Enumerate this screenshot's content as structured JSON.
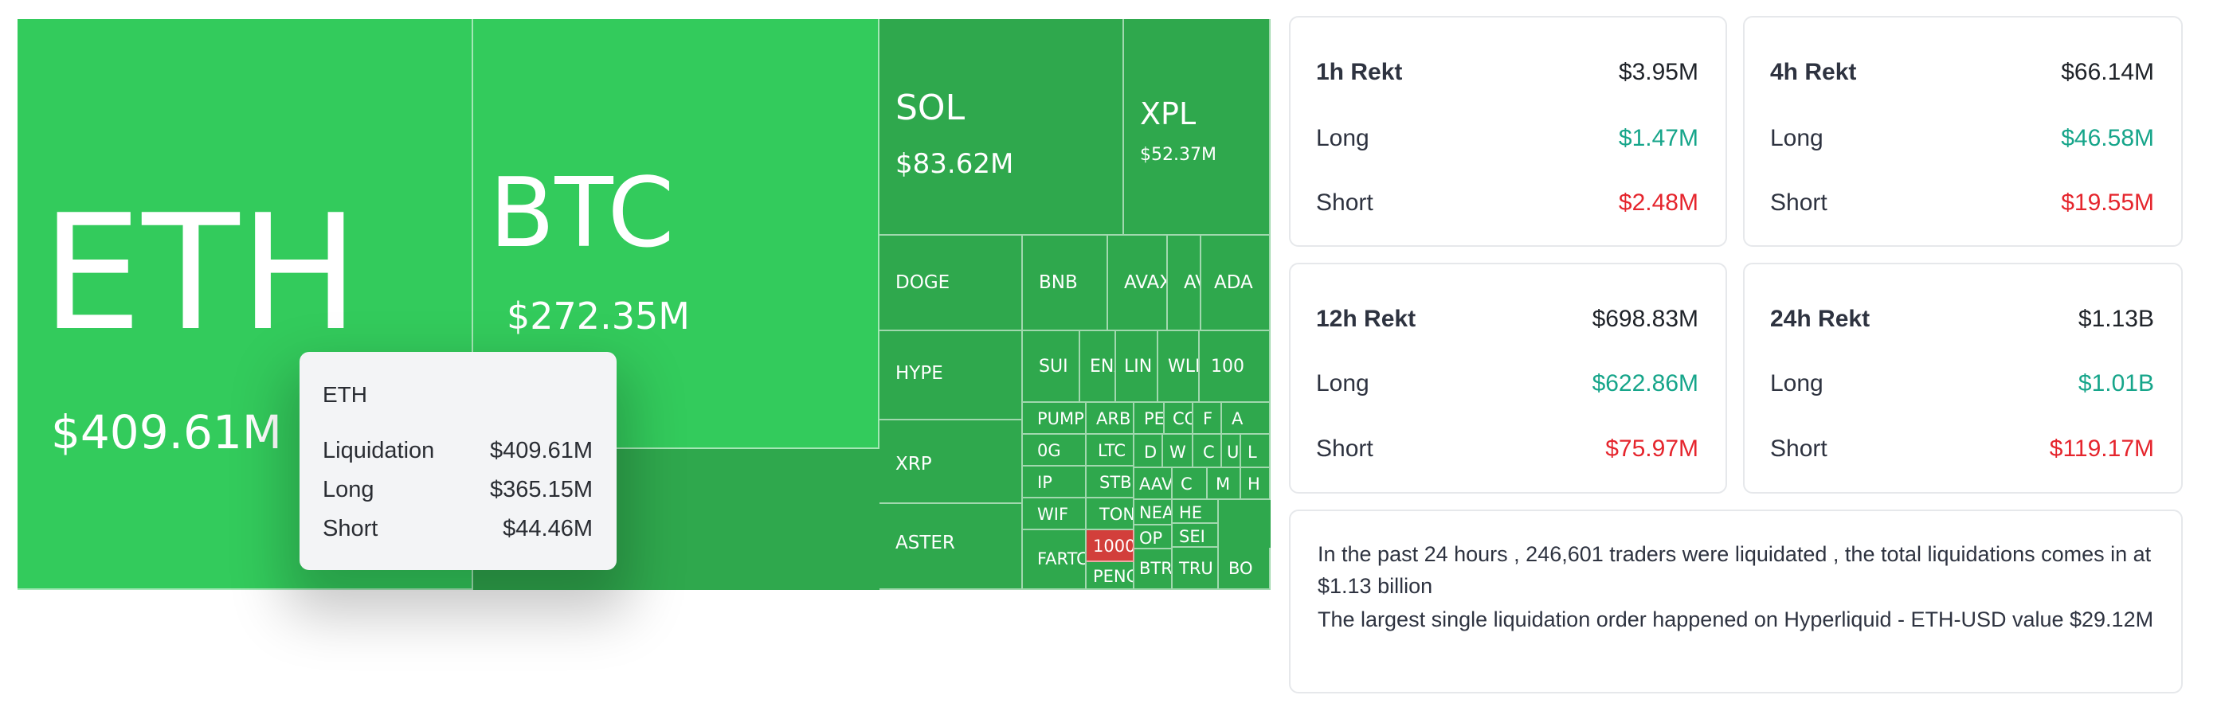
{
  "treemap": {
    "cells": [
      {
        "symbol": "ETH",
        "value": "$409.61M"
      },
      {
        "symbol": "BTC",
        "value": "$272.35M"
      },
      {
        "symbol": "SOL",
        "value": "$83.62M"
      },
      {
        "symbol": "XPL",
        "value": "$52.37M"
      },
      {
        "symbol": "DOGE"
      },
      {
        "symbol": "BNB"
      },
      {
        "symbol": "AVAX"
      },
      {
        "symbol": "AVN"
      },
      {
        "symbol": "ADA"
      },
      {
        "symbol": "HYPE"
      },
      {
        "symbol": "SUI"
      },
      {
        "symbol": "ENA"
      },
      {
        "symbol": "LIN"
      },
      {
        "symbol": "WLI"
      },
      {
        "symbol": "100"
      },
      {
        "symbol": "XRP"
      },
      {
        "symbol": "PUMP"
      },
      {
        "symbol": "ARB"
      },
      {
        "symbol": "PE"
      },
      {
        "symbol": "CO"
      },
      {
        "symbol": "F"
      },
      {
        "symbol": "A"
      },
      {
        "symbol": "0G"
      },
      {
        "symbol": "LTC"
      },
      {
        "symbol": "D"
      },
      {
        "symbol": "W"
      },
      {
        "symbol": "C"
      },
      {
        "symbol": "U"
      },
      {
        "symbol": "L"
      },
      {
        "symbol": "STBL"
      },
      {
        "symbol": "IP"
      },
      {
        "symbol": "TON"
      },
      {
        "symbol": "AAV"
      },
      {
        "symbol": "C"
      },
      {
        "symbol": "M"
      },
      {
        "symbol": "H"
      },
      {
        "symbol": "ASTER"
      },
      {
        "symbol": "WIF"
      },
      {
        "symbol": "1000"
      },
      {
        "symbol": "NEA"
      },
      {
        "symbol": "OP"
      },
      {
        "symbol": "HE"
      },
      {
        "symbol": "SEI"
      },
      {
        "symbol": "FARTC"
      },
      {
        "symbol": "PENG"
      },
      {
        "symbol": "BTR"
      },
      {
        "symbol": "TRU"
      },
      {
        "symbol": "BO"
      }
    ]
  },
  "tooltip": {
    "title": "ETH",
    "rows": [
      {
        "label": "Liquidation",
        "value": "$409.61M"
      },
      {
        "label": "Long",
        "value": "$365.15M"
      },
      {
        "label": "Short",
        "value": "$44.46M"
      }
    ]
  },
  "panels": [
    {
      "title": "1h Rekt",
      "total": "$3.95M",
      "long_label": "Long",
      "long": "$1.47M",
      "short_label": "Short",
      "short": "$2.48M"
    },
    {
      "title": "4h Rekt",
      "total": "$66.14M",
      "long_label": "Long",
      "long": "$46.58M",
      "short_label": "Short",
      "short": "$19.55M"
    },
    {
      "title": "12h Rekt",
      "total": "$698.83M",
      "long_label": "Long",
      "long": "$622.86M",
      "short_label": "Short",
      "short": "$75.97M"
    },
    {
      "title": "24h Rekt",
      "total": "$1.13B",
      "long_label": "Long",
      "long": "$1.01B",
      "short_label": "Short",
      "short": "$119.17M"
    }
  ],
  "summary": {
    "line1": "In the past 24 hours , 246,601 traders were liquidated , the total liquidations comes in at $1.13 billion",
    "line2": "The largest single liquidation order happened on Hyperliquid - ETH-USD value $29.12M"
  },
  "colors": {
    "bright_green": "#33cb5c",
    "mid_green": "#2fa84d",
    "red": "#d23f3b",
    "long_green": "#16a58a",
    "short_red": "#e5252d"
  }
}
